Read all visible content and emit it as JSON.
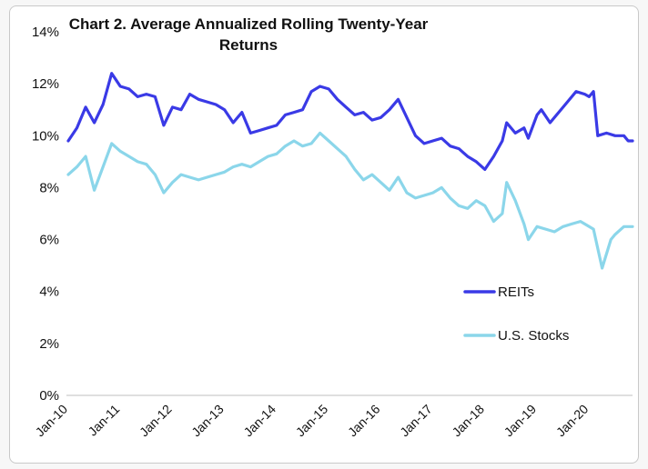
{
  "chart_data": {
    "type": "line",
    "title": "Chart 2. Average Annualized Rolling Twenty-Year Returns",
    "title_lines": [
      "Chart 2. Average Annualized Rolling Twenty-Year",
      "Returns"
    ],
    "xlabel": "",
    "ylabel": "",
    "ylim": [
      0,
      14
    ],
    "y_ticks": [
      0,
      2,
      4,
      6,
      8,
      10,
      12,
      14
    ],
    "y_tick_labels": [
      "0%",
      "2%",
      "4%",
      "6%",
      "8%",
      "10%",
      "12%",
      "14%"
    ],
    "x_tick_labels": [
      "Jan-10",
      "Jan-11",
      "Jan-12",
      "Jan-13",
      "Jan-14",
      "Jan-15",
      "Jan-16",
      "Jan-17",
      "Jan-18",
      "Jan-19",
      "Jan-20"
    ],
    "grid": false,
    "legend_position": "bottom-right",
    "x_start": "2010-01",
    "x_end": "2020-11",
    "series": [
      {
        "name": "REITs",
        "color": "#3a3ae6",
        "points": [
          [
            "2010-01",
            9.8
          ],
          [
            "2010-03",
            10.3
          ],
          [
            "2010-05",
            11.1
          ],
          [
            "2010-07",
            10.5
          ],
          [
            "2010-09",
            11.2
          ],
          [
            "2010-11",
            12.4
          ],
          [
            "2011-01",
            11.9
          ],
          [
            "2011-03",
            11.8
          ],
          [
            "2011-05",
            11.5
          ],
          [
            "2011-07",
            11.6
          ],
          [
            "2011-09",
            11.5
          ],
          [
            "2011-11",
            10.4
          ],
          [
            "2012-01",
            11.1
          ],
          [
            "2012-03",
            11.0
          ],
          [
            "2012-05",
            11.6
          ],
          [
            "2012-07",
            11.4
          ],
          [
            "2012-09",
            11.3
          ],
          [
            "2012-11",
            11.2
          ],
          [
            "2013-01",
            11.0
          ],
          [
            "2013-03",
            10.5
          ],
          [
            "2013-05",
            10.9
          ],
          [
            "2013-07",
            10.1
          ],
          [
            "2013-09",
            10.2
          ],
          [
            "2013-11",
            10.3
          ],
          [
            "2014-01",
            10.4
          ],
          [
            "2014-03",
            10.8
          ],
          [
            "2014-05",
            10.9
          ],
          [
            "2014-07",
            11.0
          ],
          [
            "2014-09",
            11.7
          ],
          [
            "2014-11",
            11.9
          ],
          [
            "2015-01",
            11.8
          ],
          [
            "2015-03",
            11.4
          ],
          [
            "2015-05",
            11.1
          ],
          [
            "2015-07",
            10.8
          ],
          [
            "2015-09",
            10.9
          ],
          [
            "2015-11",
            10.6
          ],
          [
            "2016-01",
            10.7
          ],
          [
            "2016-03",
            11.0
          ],
          [
            "2016-05",
            11.4
          ],
          [
            "2016-07",
            10.7
          ],
          [
            "2016-09",
            10.0
          ],
          [
            "2016-11",
            9.7
          ],
          [
            "2017-01",
            9.8
          ],
          [
            "2017-03",
            9.9
          ],
          [
            "2017-05",
            9.6
          ],
          [
            "2017-07",
            9.5
          ],
          [
            "2017-09",
            9.2
          ],
          [
            "2017-11",
            9.0
          ],
          [
            "2018-01",
            8.7
          ],
          [
            "2018-03",
            9.2
          ],
          [
            "2018-05",
            9.8
          ],
          [
            "2018-06",
            10.5
          ],
          [
            "2018-08",
            10.1
          ],
          [
            "2018-10",
            10.3
          ],
          [
            "2018-11",
            9.9
          ],
          [
            "2019-01",
            10.8
          ],
          [
            "2019-02",
            11.0
          ],
          [
            "2019-04",
            10.5
          ],
          [
            "2019-06",
            10.9
          ],
          [
            "2019-08",
            11.3
          ],
          [
            "2019-10",
            11.7
          ],
          [
            "2019-12",
            11.6
          ],
          [
            "2020-01",
            11.5
          ],
          [
            "2020-02",
            11.7
          ],
          [
            "2020-03",
            10.0
          ],
          [
            "2020-05",
            10.1
          ],
          [
            "2020-07",
            10.0
          ],
          [
            "2020-09",
            10.0
          ],
          [
            "2020-10",
            9.8
          ],
          [
            "2020-11",
            9.8
          ]
        ]
      },
      {
        "name": "U.S. Stocks",
        "color": "#8bd6ea",
        "points": [
          [
            "2010-01",
            8.5
          ],
          [
            "2010-03",
            8.8
          ],
          [
            "2010-05",
            9.2
          ],
          [
            "2010-07",
            7.9
          ],
          [
            "2010-09",
            8.8
          ],
          [
            "2010-11",
            9.7
          ],
          [
            "2011-01",
            9.4
          ],
          [
            "2011-03",
            9.2
          ],
          [
            "2011-05",
            9.0
          ],
          [
            "2011-07",
            8.9
          ],
          [
            "2011-09",
            8.5
          ],
          [
            "2011-11",
            7.8
          ],
          [
            "2012-01",
            8.2
          ],
          [
            "2012-03",
            8.5
          ],
          [
            "2012-05",
            8.4
          ],
          [
            "2012-07",
            8.3
          ],
          [
            "2012-09",
            8.4
          ],
          [
            "2012-11",
            8.5
          ],
          [
            "2013-01",
            8.6
          ],
          [
            "2013-03",
            8.8
          ],
          [
            "2013-05",
            8.9
          ],
          [
            "2013-07",
            8.8
          ],
          [
            "2013-09",
            9.0
          ],
          [
            "2013-11",
            9.2
          ],
          [
            "2014-01",
            9.3
          ],
          [
            "2014-03",
            9.6
          ],
          [
            "2014-05",
            9.8
          ],
          [
            "2014-07",
            9.6
          ],
          [
            "2014-09",
            9.7
          ],
          [
            "2014-11",
            10.1
          ],
          [
            "2015-01",
            9.8
          ],
          [
            "2015-03",
            9.5
          ],
          [
            "2015-05",
            9.2
          ],
          [
            "2015-07",
            8.7
          ],
          [
            "2015-09",
            8.3
          ],
          [
            "2015-11",
            8.5
          ],
          [
            "2016-01",
            8.2
          ],
          [
            "2016-03",
            7.9
          ],
          [
            "2016-05",
            8.4
          ],
          [
            "2016-07",
            7.8
          ],
          [
            "2016-09",
            7.6
          ],
          [
            "2016-11",
            7.7
          ],
          [
            "2017-01",
            7.8
          ],
          [
            "2017-03",
            8.0
          ],
          [
            "2017-05",
            7.6
          ],
          [
            "2017-07",
            7.3
          ],
          [
            "2017-09",
            7.2
          ],
          [
            "2017-11",
            7.5
          ],
          [
            "2018-01",
            7.3
          ],
          [
            "2018-03",
            6.7
          ],
          [
            "2018-05",
            7.0
          ],
          [
            "2018-06",
            8.2
          ],
          [
            "2018-08",
            7.5
          ],
          [
            "2018-10",
            6.6
          ],
          [
            "2018-11",
            6.0
          ],
          [
            "2019-01",
            6.5
          ],
          [
            "2019-03",
            6.4
          ],
          [
            "2019-05",
            6.3
          ],
          [
            "2019-07",
            6.5
          ],
          [
            "2019-09",
            6.6
          ],
          [
            "2019-11",
            6.7
          ],
          [
            "2020-01",
            6.5
          ],
          [
            "2020-02",
            6.4
          ],
          [
            "2020-04",
            4.9
          ],
          [
            "2020-06",
            6.0
          ],
          [
            "2020-07",
            6.2
          ],
          [
            "2020-09",
            6.5
          ],
          [
            "2020-11",
            6.5
          ]
        ]
      }
    ]
  }
}
